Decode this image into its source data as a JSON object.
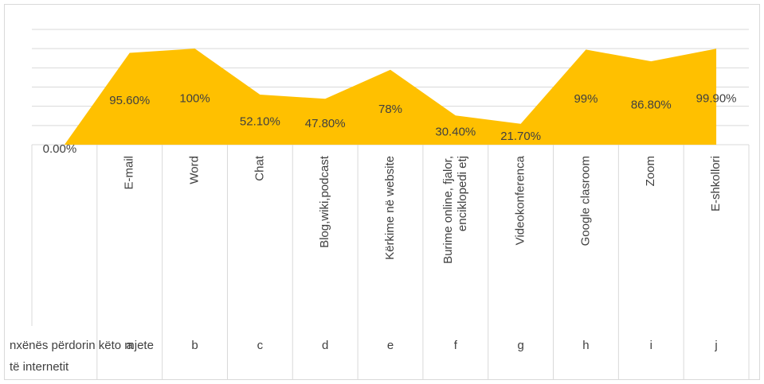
{
  "chart_data": {
    "type": "area",
    "categories": [
      null,
      "E-mail",
      "Word",
      "Chat",
      "Blog,wiki,podcast",
      "Kërkime në website",
      "Burime online, fjalor,\nenciklopedi etj",
      "Videokonferenca",
      "Google clasroom",
      "Zoom",
      "E-shkollori"
    ],
    "groups": [
      "nxënës përdorin këto mjete\ntë internetit",
      "a",
      "b",
      "c",
      "d",
      "e",
      "f",
      "g",
      "h",
      "i",
      "j"
    ],
    "values": [
      0,
      95.6,
      100,
      52.1,
      47.8,
      78,
      30.4,
      21.7,
      99,
      86.8,
      99.9
    ],
    "value_labels": [
      "0.00%",
      "95.60%",
      "100%",
      "52.10%",
      "47.80%",
      "78%",
      "30.40%",
      "21.70%",
      "99%",
      "86.80%",
      "99.90%"
    ],
    "color": "#ffc000",
    "ylim": [
      0,
      120
    ],
    "yticks": [
      0,
      20,
      40,
      60,
      80,
      100,
      120
    ],
    "grid": true
  }
}
